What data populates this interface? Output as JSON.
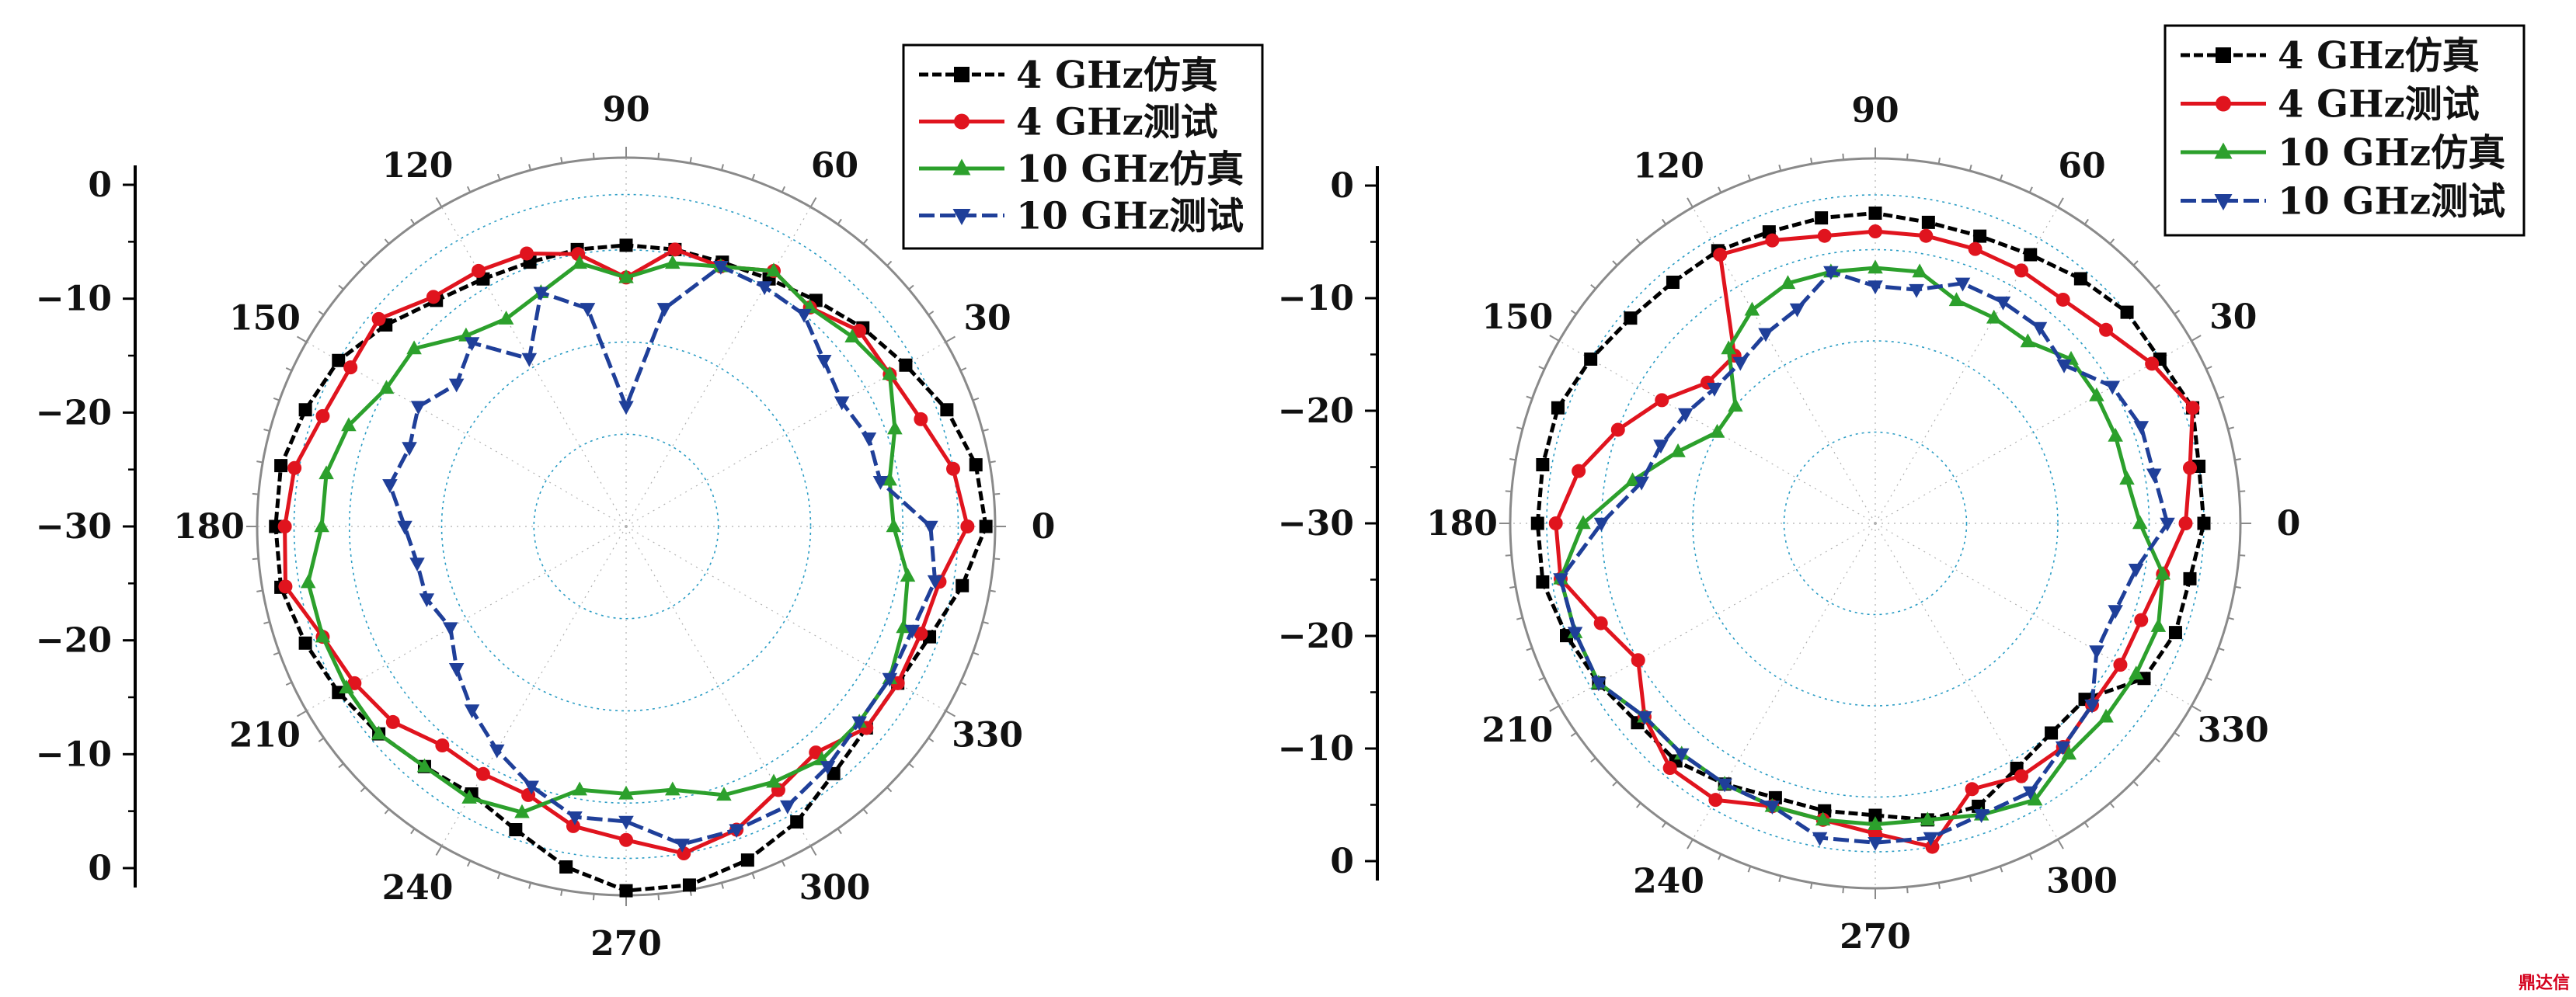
{
  "chart_data": [
    {
      "type": "polar-line",
      "r_axis": {
        "ticks": [
          "0",
          "-10",
          "-20",
          "-30",
          "-20",
          "-10",
          "0"
        ],
        "rlim": [
          -40,
          0
        ]
      },
      "angle_ticks": [
        "0",
        "30",
        "60",
        "90",
        "120",
        "150",
        "180",
        "210",
        "240",
        "270",
        "300",
        "330"
      ],
      "legend": {
        "placement": "top-right"
      },
      "angles": [
        0,
        10,
        20,
        30,
        40,
        50,
        60,
        70,
        80,
        90,
        100,
        110,
        120,
        130,
        140,
        150,
        160,
        170,
        180,
        190,
        200,
        210,
        220,
        230,
        240,
        250,
        260,
        270,
        280,
        290,
        300,
        310,
        320,
        330,
        340,
        350
      ],
      "series": [
        {
          "name": "4 GHz仿真",
          "color": "#000000",
          "marker": "square",
          "values": [
            -1,
            -1.5,
            -3,
            -5,
            -6.5,
            -8,
            -9,
            -9.5,
            -9.5,
            -9.5,
            -9.5,
            -9.5,
            -9,
            -8,
            -6,
            -4,
            -3,
            -2,
            -2,
            -2,
            -3,
            -4,
            -5,
            -6,
            -6.5,
            -5,
            -2.5,
            -0.5,
            -0.5,
            -1.5,
            -3,
            -5,
            -6,
            -6,
            -5,
            -3
          ]
        },
        {
          "name": "4 GHz测试",
          "color": "#e0141e",
          "marker": "circle",
          "values": [
            -3,
            -4,
            -6,
            -7,
            -7,
            -9,
            -8,
            -10,
            -9.5,
            -13,
            -10,
            -8.5,
            -8,
            -7.5,
            -5,
            -5.5,
            -5,
            -3.5,
            -3,
            -2.5,
            -5,
            -6,
            -7,
            -9,
            -9,
            -9,
            -7,
            -6,
            -4,
            -5,
            -7,
            -8,
            -6,
            -6,
            -6,
            -5.5
          ]
        },
        {
          "name": "10 GHz仿真",
          "color": "#2ca02c",
          "marker": "triangle-up",
          "values": [
            -11,
            -11,
            -9,
            -7,
            -8,
            -9,
            -8,
            -10,
            -11,
            -13,
            -11,
            -13,
            -14,
            -13,
            -10,
            -10,
            -8,
            -7,
            -7,
            -5,
            -5,
            -5,
            -5,
            -6,
            -6,
            -7,
            -11,
            -11,
            -11,
            -9,
            -8,
            -7,
            -7,
            -7,
            -8,
            -9
          ]
        },
        {
          "name": "10 GHz测试",
          "color": "#1f3f99",
          "marker": "triangle-down",
          "values": [
            -7,
            -12,
            -12,
            -13,
            -12,
            -10,
            -10,
            -10,
            -16,
            -27,
            -16,
            -13,
            -19,
            -14,
            -16,
            -14,
            -15,
            -14,
            -16,
            -17,
            -17,
            -18,
            -16,
            -14,
            -12,
            -10,
            -8,
            -8,
            -5,
            -5,
            -5,
            -6,
            -7,
            -7,
            -7,
            -6
          ]
        }
      ]
    },
    {
      "type": "polar-line",
      "r_axis": {
        "ticks": [
          "0",
          "-10",
          "-20",
          "-30",
          "-20",
          "-10",
          "0"
        ],
        "rlim": [
          -40,
          0
        ]
      },
      "angle_ticks": [
        "0",
        "30",
        "60",
        "90",
        "120",
        "150",
        "180",
        "210",
        "240",
        "270",
        "300",
        "330"
      ],
      "legend": {
        "placement": "top-right"
      },
      "angles": [
        0,
        10,
        20,
        30,
        40,
        50,
        60,
        70,
        80,
        90,
        100,
        110,
        120,
        130,
        140,
        150,
        160,
        170,
        180,
        190,
        200,
        210,
        220,
        230,
        240,
        250,
        260,
        270,
        280,
        290,
        300,
        310,
        320,
        330,
        340,
        350
      ],
      "series": [
        {
          "name": "4 GHz仿真",
          "color": "#000000",
          "marker": "square",
          "values": [
            -4,
            -4,
            -3,
            -4,
            -4,
            -5,
            -6,
            -6.5,
            -6.5,
            -6,
            -6,
            -6,
            -5.5,
            -5.5,
            -5,
            -4,
            -3,
            -3,
            -3,
            -3,
            -4,
            -5,
            -6,
            -6,
            -7,
            -8,
            -8,
            -8,
            -7,
            -7,
            -9,
            -10,
            -10,
            -6,
            -5,
            -5
          ]
        },
        {
          "name": "4 GHz测试",
          "color": "#e0141e",
          "marker": "circle",
          "values": [
            -6,
            -5,
            -3,
            -5,
            -7,
            -8,
            -8,
            -8,
            -8,
            -8,
            -8,
            -7,
            -6,
            -16,
            -16,
            -13,
            -10,
            -7,
            -5,
            -5,
            -8,
            -10,
            -7,
            -5,
            -5,
            -7,
            -7,
            -6,
            -4,
            -9,
            -8,
            -8,
            -9,
            -9,
            -9,
            -8
          ]
        },
        {
          "name": "10 GHz仿真",
          "color": "#2ca02c",
          "marker": "triangle-up",
          "values": [
            -11,
            -12,
            -12,
            -12,
            -12,
            -14,
            -14,
            -14,
            -12,
            -12,
            -12,
            -12,
            -13,
            -15,
            -20,
            -20,
            -17,
            -13,
            -8,
            -5,
            -5,
            -5,
            -7,
            -7,
            -7,
            -7,
            -7,
            -7,
            -7,
            -6,
            -5,
            -7,
            -7,
            -7,
            -7,
            -8
          ]
        },
        {
          "name": "10 GHz测试",
          "color": "#1f3f99",
          "marker": "triangle-down",
          "values": [
            -8,
            -9,
            -9,
            -10,
            -13,
            -12,
            -12,
            -12,
            -14,
            -14,
            -12,
            -15,
            -16,
            -17,
            -17,
            -16,
            -15,
            -14,
            -10,
            -5,
            -5,
            -5,
            -7,
            -7,
            -7,
            -7,
            -5,
            -5,
            -5,
            -6,
            -6,
            -8,
            -9,
            -12,
            -12,
            -11
          ]
        }
      ]
    }
  ],
  "watermark": "鼎达信"
}
